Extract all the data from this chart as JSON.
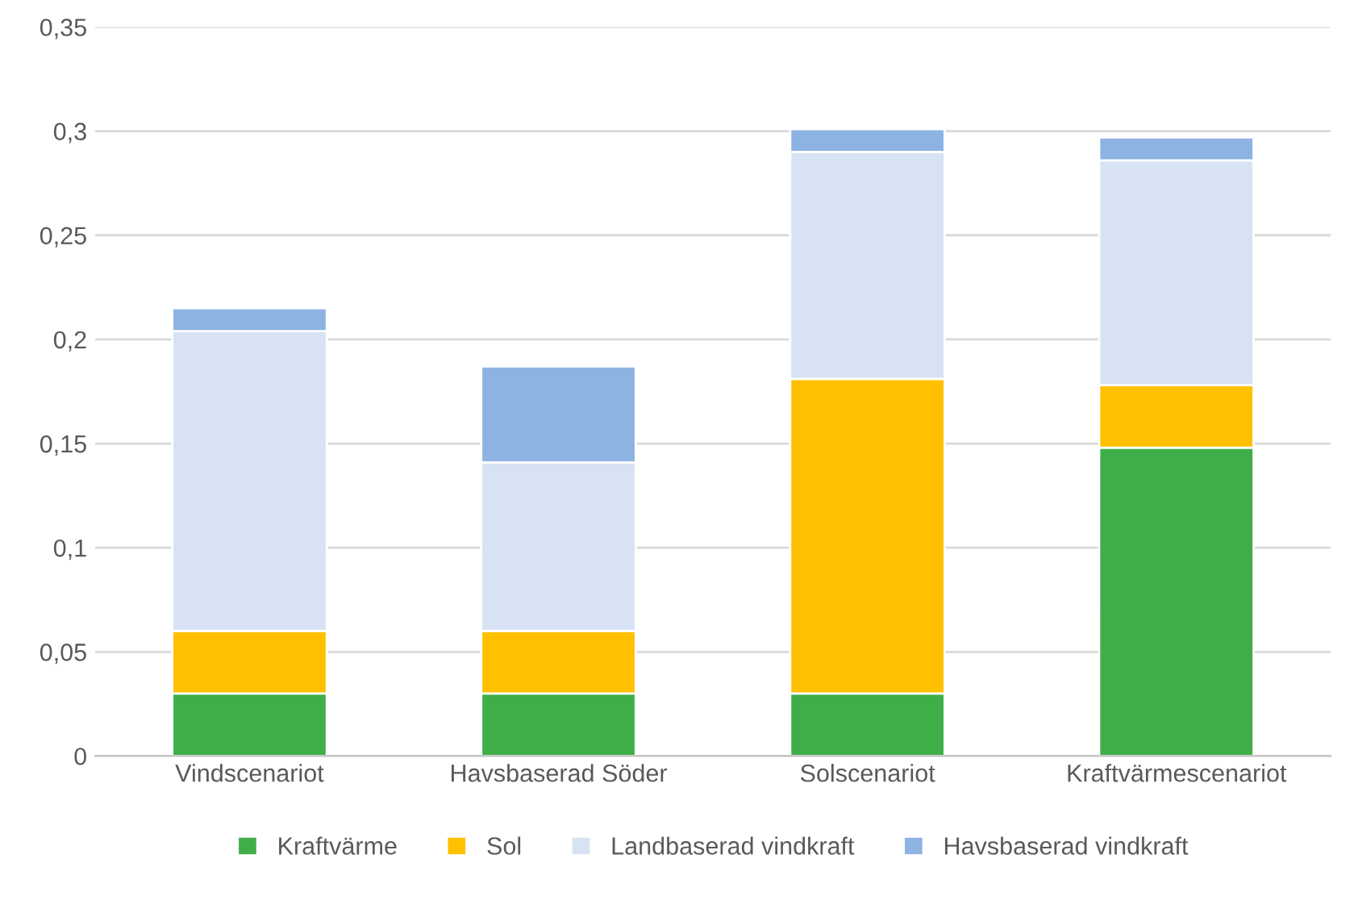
{
  "chart_data": {
    "type": "bar",
    "stacked": true,
    "categories": [
      "Vindscenariot",
      "Havsbaserad Söder",
      "Solscenariot",
      "Kraftvärmescenariot"
    ],
    "series": [
      {
        "name": "Kraftvärme",
        "color": "#3fae49",
        "values": [
          0.03,
          0.03,
          0.03,
          0.148
        ]
      },
      {
        "name": "Sol",
        "color": "#ffc000",
        "values": [
          0.03,
          0.03,
          0.151,
          0.03
        ]
      },
      {
        "name": "Landbaserad vindkraft",
        "color": "#d7e3f4",
        "values": [
          0.144,
          0.081,
          0.109,
          0.108
        ]
      },
      {
        "name": "Havsbaserad vindkraft",
        "color": "#8db3e2",
        "values": [
          0.011,
          0.046,
          0.011,
          0.011
        ]
      }
    ],
    "ylim": [
      0,
      0.35
    ],
    "yticks": [
      {
        "value": 0,
        "label": "0"
      },
      {
        "value": 0.05,
        "label": "0,05"
      },
      {
        "value": 0.1,
        "label": "0,1"
      },
      {
        "value": 0.15,
        "label": "0,15"
      },
      {
        "value": 0.2,
        "label": "0,2"
      },
      {
        "value": 0.25,
        "label": "0,25"
      },
      {
        "value": 0.3,
        "label": "0,3"
      },
      {
        "value": 0.35,
        "label": "0,35"
      }
    ],
    "grid": "y",
    "legend": "bottom"
  }
}
